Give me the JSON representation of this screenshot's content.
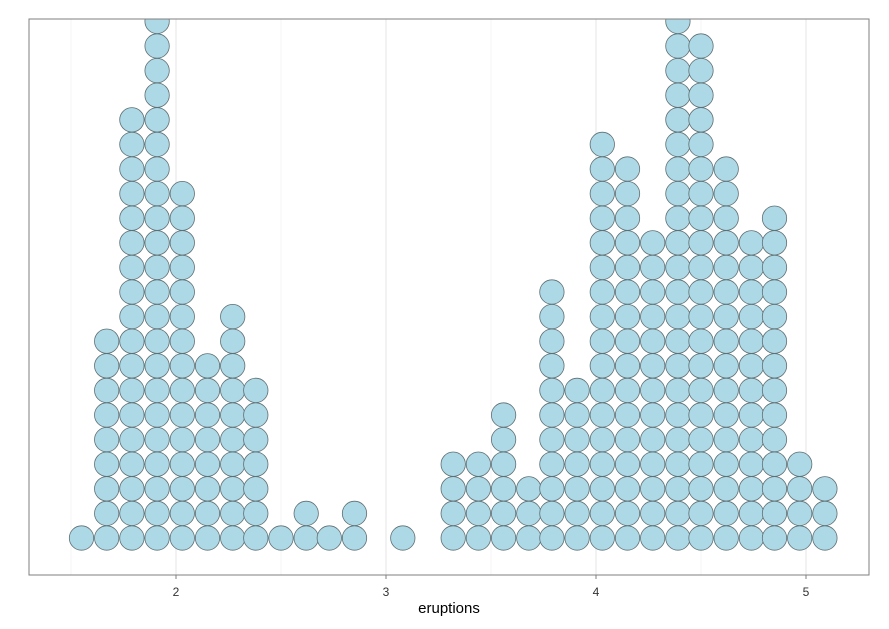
{
  "chart_data": {
    "type": "dotplot",
    "xlabel": "eruptions",
    "ylabel": "",
    "xlim": [
      1.3,
      5.3
    ],
    "ticks": [
      2,
      3,
      4,
      5
    ],
    "tick_labels": [
      "2",
      "3",
      "4",
      "5"
    ],
    "grid": true,
    "fill_color": "#add8e6",
    "stroke_color": "#5f6f73",
    "stacks": [
      {
        "x": 1.55,
        "count": 1
      },
      {
        "x": 1.67,
        "count": 9
      },
      {
        "x": 1.79,
        "count": 18
      },
      {
        "x": 1.91,
        "count": 22
      },
      {
        "x": 2.03,
        "count": 15
      },
      {
        "x": 2.15,
        "count": 8
      },
      {
        "x": 2.27,
        "count": 10
      },
      {
        "x": 2.38,
        "count": 7
      },
      {
        "x": 2.5,
        "count": 1
      },
      {
        "x": 2.62,
        "count": 2
      },
      {
        "x": 2.73,
        "count": 1
      },
      {
        "x": 2.85,
        "count": 2
      },
      {
        "x": 3.08,
        "count": 1
      },
      {
        "x": 3.32,
        "count": 4
      },
      {
        "x": 3.44,
        "count": 4
      },
      {
        "x": 3.56,
        "count": 6
      },
      {
        "x": 3.68,
        "count": 3
      },
      {
        "x": 3.79,
        "count": 11
      },
      {
        "x": 3.91,
        "count": 7
      },
      {
        "x": 4.03,
        "count": 17
      },
      {
        "x": 4.15,
        "count": 16
      },
      {
        "x": 4.27,
        "count": 13
      },
      {
        "x": 4.39,
        "count": 22
      },
      {
        "x": 4.5,
        "count": 21
      },
      {
        "x": 4.62,
        "count": 16
      },
      {
        "x": 4.74,
        "count": 13
      },
      {
        "x": 4.85,
        "count": 14
      },
      {
        "x": 4.97,
        "count": 4
      },
      {
        "x": 5.09,
        "count": 3
      }
    ]
  }
}
